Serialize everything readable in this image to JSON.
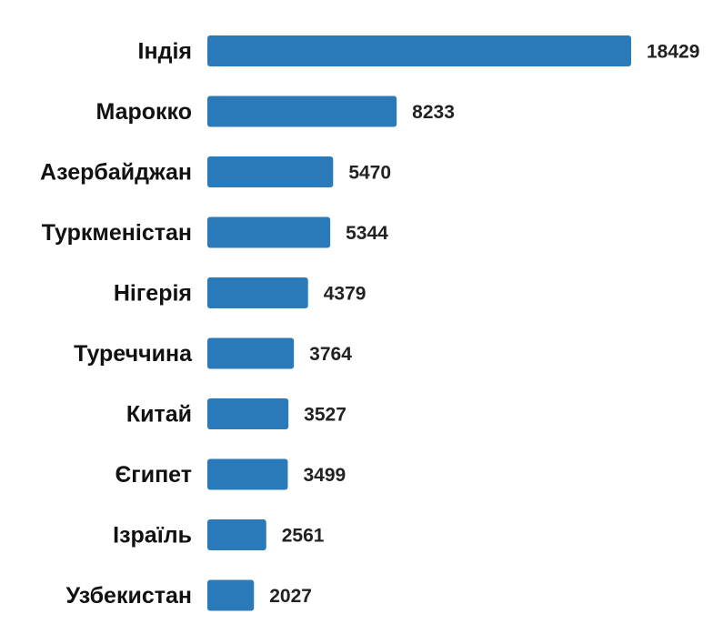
{
  "chart_data": {
    "type": "bar",
    "orientation": "horizontal",
    "categories": [
      "Індія",
      "Марокко",
      "Азербайджан",
      "Туркменістан",
      "Нігерія",
      "Туреччина",
      "Китай",
      "Єгипет",
      "Ізраїль",
      "Узбекистан"
    ],
    "values": [
      18429,
      8233,
      5470,
      5344,
      4379,
      3764,
      3527,
      3499,
      2561,
      2027
    ],
    "color": "#2a7ab9"
  }
}
